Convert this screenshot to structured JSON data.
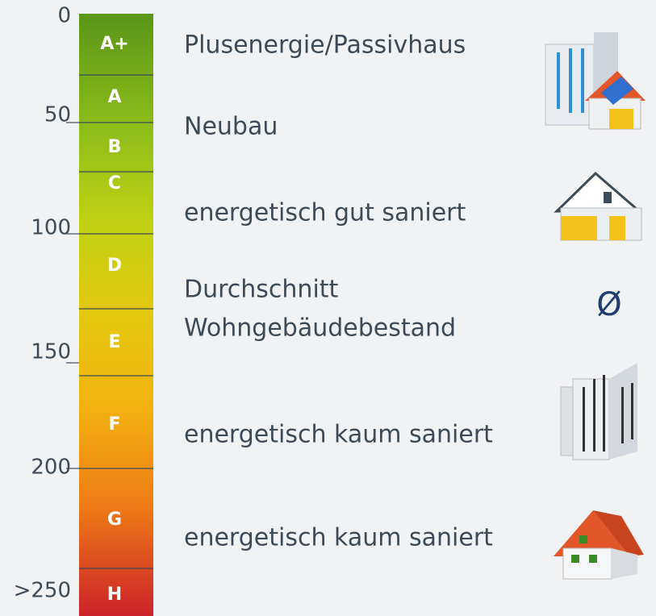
{
  "scale_labels": [
    "0",
    "50",
    "100",
    "150",
    "200",
    ">250"
  ],
  "classes": [
    {
      "label": "A+",
      "description": [
        "Plusenergie/Passivhaus"
      ]
    },
    {
      "label": "A",
      "description": []
    },
    {
      "label": "B",
      "description": [
        "Neubau"
      ]
    },
    {
      "label": "C",
      "description": [
        "energetisch gut saniert"
      ]
    },
    {
      "label": "D",
      "description": [
        "Durchschnitt",
        "Wohngebäudebestand"
      ]
    },
    {
      "label": "E",
      "description": []
    },
    {
      "label": "F",
      "description": [
        "energetisch kaum saniert"
      ]
    },
    {
      "label": "G",
      "description": [
        "energetisch kaum saniert"
      ]
    },
    {
      "label": "H",
      "description": []
    }
  ],
  "average_symbol": "Ø"
}
